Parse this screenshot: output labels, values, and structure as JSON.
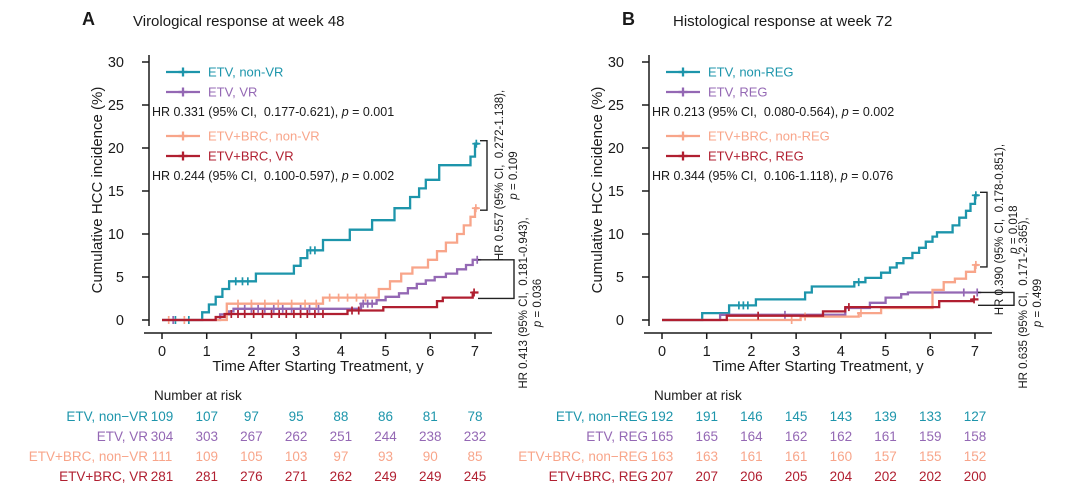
{
  "page": {
    "background": "#ffffff",
    "text_color": "#1a1a1a",
    "colors": {
      "teal": "#1d95ab",
      "purple": "#9468b4",
      "salmon": "#f8a58a",
      "crimson": "#b01f30"
    }
  },
  "chart_data": [
    {
      "type": "line",
      "subtype": "kaplan-meier-cumulative-incidence",
      "panel_letter": "A",
      "title": "Virological response at week 48",
      "xlabel": "Time After Starting Treatment, y",
      "ylabel": "Cumulative HCC incidence (%)",
      "xlim": [
        0,
        7.1
      ],
      "ylim": [
        0,
        31
      ],
      "x_ticks": [
        0,
        1,
        2,
        3,
        4,
        5,
        6,
        7
      ],
      "y_ticks": [
        0,
        5,
        10,
        15,
        20,
        25,
        30
      ],
      "grid": false,
      "legend_position": "top-left-inside",
      "series": [
        {
          "name": "ETV, non-VR",
          "color": "#1d95ab",
          "steps": [
            [
              0,
              0
            ],
            [
              0.9,
              0.9
            ],
            [
              1.05,
              1.8
            ],
            [
              1.2,
              2.7
            ],
            [
              1.35,
              3.6
            ],
            [
              1.5,
              4.5
            ],
            [
              2.1,
              5.4
            ],
            [
              2.95,
              6.3
            ],
            [
              3.1,
              7.2
            ],
            [
              3.25,
              8.1
            ],
            [
              3.6,
              9.3
            ],
            [
              4.2,
              10.5
            ],
            [
              4.7,
              11.6
            ],
            [
              5.2,
              13.0
            ],
            [
              5.55,
              14.3
            ],
            [
              5.75,
              15.3
            ],
            [
              5.9,
              16.3
            ],
            [
              6.2,
              18.0
            ],
            [
              6.9,
              19.0
            ],
            [
              7.0,
              20.5
            ]
          ],
          "censors": [
            [
              0.3,
              0
            ],
            [
              0.6,
              0
            ],
            [
              1.65,
              4.5
            ],
            [
              1.8,
              4.5
            ],
            [
              1.92,
              4.5
            ],
            [
              3.32,
              8.1
            ],
            [
              3.42,
              8.1
            ],
            [
              7.03,
              20.5
            ]
          ]
        },
        {
          "name": "ETV, VR",
          "color": "#9468b4",
          "steps": [
            [
              0,
              0
            ],
            [
              1.3,
              0.65
            ],
            [
              1.5,
              1.0
            ],
            [
              1.6,
              1.3
            ],
            [
              4.45,
              1.9
            ],
            [
              4.8,
              2.3
            ],
            [
              5.0,
              2.7
            ],
            [
              5.3,
              3.1
            ],
            [
              5.5,
              3.7
            ],
            [
              5.7,
              4.2
            ],
            [
              5.9,
              4.6
            ],
            [
              6.1,
              5.0
            ],
            [
              6.35,
              5.4
            ],
            [
              6.6,
              5.9
            ],
            [
              6.8,
              6.4
            ],
            [
              6.95,
              7.0
            ]
          ],
          "censors": [
            [
              0.25,
              0
            ],
            [
              1.7,
              1.3
            ],
            [
              1.85,
              1.3
            ],
            [
              2.0,
              1.3
            ],
            [
              2.15,
              1.3
            ],
            [
              2.3,
              1.3
            ],
            [
              2.5,
              1.3
            ],
            [
              2.7,
              1.3
            ],
            [
              2.9,
              1.3
            ],
            [
              3.1,
              1.3
            ],
            [
              3.3,
              1.3
            ],
            [
              3.5,
              1.3
            ],
            [
              4.5,
              1.9
            ],
            [
              4.6,
              1.9
            ],
            [
              4.7,
              1.9
            ],
            [
              7.05,
              7.0
            ]
          ]
        },
        {
          "name": "ETV+BRC, non-VR",
          "color": "#f8a58a",
          "steps": [
            [
              0,
              0
            ],
            [
              1.45,
              1.9
            ],
            [
              3.6,
              2.6
            ],
            [
              4.85,
              3.6
            ],
            [
              5.1,
              4.5
            ],
            [
              5.35,
              5.4
            ],
            [
              5.6,
              6.1
            ],
            [
              5.95,
              7.0
            ],
            [
              6.15,
              8.0
            ],
            [
              6.35,
              9.0
            ],
            [
              6.6,
              10.0
            ],
            [
              6.75,
              11.0
            ],
            [
              6.9,
              12.0
            ],
            [
              7.0,
              13.0
            ]
          ],
          "censors": [
            [
              0.15,
              0
            ],
            [
              0.5,
              0
            ],
            [
              1.7,
              1.9
            ],
            [
              2.0,
              1.9
            ],
            [
              2.3,
              1.9
            ],
            [
              2.6,
              1.9
            ],
            [
              2.9,
              1.9
            ],
            [
              3.2,
              1.9
            ],
            [
              3.45,
              1.9
            ],
            [
              3.75,
              2.6
            ],
            [
              3.95,
              2.6
            ],
            [
              4.15,
              2.6
            ],
            [
              4.35,
              2.6
            ],
            [
              4.55,
              2.6
            ],
            [
              7.02,
              13.0
            ]
          ]
        },
        {
          "name": "ETV+BRC, VR",
          "color": "#b01f30",
          "steps": [
            [
              0,
              0
            ],
            [
              1.2,
              0.35
            ],
            [
              1.4,
              0.7
            ],
            [
              4.15,
              1.1
            ],
            [
              4.95,
              1.5
            ],
            [
              6.15,
              2.2
            ],
            [
              6.28,
              2.6
            ],
            [
              6.95,
              3.2
            ]
          ],
          "censors": [
            [
              1.55,
              0.7
            ],
            [
              1.7,
              0.7
            ],
            [
              1.85,
              0.7
            ],
            [
              2.05,
              0.7
            ],
            [
              2.25,
              0.7
            ],
            [
              2.45,
              0.7
            ],
            [
              2.62,
              0.7
            ],
            [
              2.78,
              0.7
            ],
            [
              2.95,
              0.7
            ],
            [
              3.1,
              0.7
            ],
            [
              3.25,
              0.7
            ],
            [
              3.42,
              0.7
            ],
            [
              3.6,
              0.7
            ],
            [
              4.25,
              1.1
            ],
            [
              4.4,
              1.1
            ],
            [
              6.98,
              3.2
            ]
          ]
        }
      ],
      "hr_annotations": [
        {
          "text": "HR 0.331 (95% CI,  0.177-0.621), ",
          "p": "p = 0.001"
        },
        {
          "text": "HR 0.244 (95% CI,  0.100-0.597), ",
          "p": "p = 0.002"
        }
      ],
      "brackets": [
        {
          "text": "HR 0.557 (95% CI,  0.272-1.138),",
          "p": "p = 0.109",
          "from": 0,
          "to": 2,
          "position": "upper"
        },
        {
          "text": "HR 0.413 (95% CI,  0.181-0.943),",
          "p": "p = 0.036",
          "from": 1,
          "to": 3,
          "position": "lower"
        }
      ],
      "number_at_risk": {
        "title": "Number at risk",
        "rows": [
          {
            "label": "ETV, non−VR",
            "values": [
              109,
              107,
              97,
              95,
              88,
              86,
              81,
              78
            ]
          },
          {
            "label": "ETV, VR",
            "values": [
              304,
              303,
              267,
              262,
              251,
              244,
              238,
              232
            ]
          },
          {
            "label": "ETV+BRC, non−VR",
            "values": [
              111,
              109,
              105,
              103,
              97,
              93,
              90,
              85
            ]
          },
          {
            "label": "ETV+BRC, VR",
            "values": [
              281,
              281,
              276,
              271,
              262,
              249,
              249,
              245
            ]
          }
        ]
      }
    },
    {
      "type": "line",
      "subtype": "kaplan-meier-cumulative-incidence",
      "panel_letter": "B",
      "title": "Histological response at week 72",
      "xlabel": "Time After Starting Treatment, y",
      "ylabel": "Cumulative HCC incidence (%)",
      "xlim": [
        0,
        7.1
      ],
      "ylim": [
        0,
        31
      ],
      "x_ticks": [
        0,
        1,
        2,
        3,
        4,
        5,
        6,
        7
      ],
      "y_ticks": [
        0,
        5,
        10,
        15,
        20,
        25,
        30
      ],
      "grid": false,
      "legend_position": "top-left-inside",
      "series": [
        {
          "name": "ETV, non-REG",
          "color": "#1d95ab",
          "steps": [
            [
              0,
              0
            ],
            [
              0.9,
              0.8
            ],
            [
              1.5,
              1.7
            ],
            [
              2.1,
              2.4
            ],
            [
              3.2,
              3.2
            ],
            [
              3.35,
              3.9
            ],
            [
              4.3,
              4.4
            ],
            [
              4.55,
              4.9
            ],
            [
              4.9,
              5.5
            ],
            [
              5.1,
              6.1
            ],
            [
              5.25,
              6.6
            ],
            [
              5.4,
              7.2
            ],
            [
              5.6,
              7.8
            ],
            [
              5.75,
              8.4
            ],
            [
              5.9,
              9.1
            ],
            [
              6.05,
              9.7
            ],
            [
              6.15,
              10.2
            ],
            [
              6.5,
              11.0
            ],
            [
              6.65,
              11.9
            ],
            [
              6.8,
              12.7
            ],
            [
              6.9,
              13.5
            ],
            [
              7.0,
              14.5
            ]
          ],
          "censors": [
            [
              1.72,
              1.7
            ],
            [
              1.82,
              1.7
            ],
            [
              1.92,
              1.7
            ],
            [
              4.4,
              4.4
            ],
            [
              7.02,
              14.5
            ]
          ]
        },
        {
          "name": "ETV, REG",
          "color": "#9468b4",
          "steps": [
            [
              0,
              0
            ],
            [
              1.3,
              0.6
            ],
            [
              4.1,
              1.4
            ],
            [
              4.65,
              2.0
            ],
            [
              5.0,
              2.6
            ],
            [
              5.35,
              3.0
            ],
            [
              5.5,
              3.2
            ]
          ],
          "censors": [
            [
              2.75,
              0.6
            ],
            [
              6.75,
              3.2
            ],
            [
              7.05,
              3.2
            ]
          ]
        },
        {
          "name": "ETV+BRC, non-REG",
          "color": "#f8a58a",
          "steps": [
            [
              0,
              0
            ],
            [
              3.1,
              0.4
            ],
            [
              4.4,
              0.8
            ],
            [
              4.9,
              1.4
            ],
            [
              6.05,
              3.5
            ],
            [
              6.3,
              4.4
            ],
            [
              6.55,
              4.8
            ],
            [
              6.8,
              5.6
            ],
            [
              7.0,
              6.4
            ]
          ],
          "censors": [
            [
              2.9,
              0
            ],
            [
              3.2,
              0.4
            ],
            [
              4.45,
              0.8
            ],
            [
              7.02,
              6.4
            ]
          ]
        },
        {
          "name": "ETV+BRC, REG",
          "color": "#b01f30",
          "steps": [
            [
              0,
              0
            ],
            [
              1.45,
              0.5
            ],
            [
              3.6,
              1.0
            ],
            [
              4.1,
              1.5
            ],
            [
              6.2,
              2.2
            ],
            [
              6.95,
              2.4
            ]
          ],
          "censors": [
            [
              2.15,
              0.5
            ],
            [
              4.18,
              1.5
            ],
            [
              6.98,
              2.4
            ]
          ]
        }
      ],
      "hr_annotations": [
        {
          "text": "HR 0.213 (95% CI,  0.080-0.564), ",
          "p": "p = 0.002"
        },
        {
          "text": "HR 0.344 (95% CI,  0.106-1.118), ",
          "p": "p = 0.076"
        }
      ],
      "brackets": [
        {
          "text": "HR 0.390 (95% CI,  0.178-0.851),",
          "p": "p = 0.018",
          "from": 0,
          "to": 2,
          "position": "upper"
        },
        {
          "text": "HR 0.635 (95% CI,  0.171-2.365),",
          "p": "p = 0.499",
          "from": 1,
          "to": 3,
          "position": "lower"
        }
      ],
      "number_at_risk": {
        "title": "Number at risk",
        "rows": [
          {
            "label": "ETV, non−REG",
            "values": [
              192,
              191,
              146,
              145,
              143,
              139,
              133,
              127
            ]
          },
          {
            "label": "ETV, REG",
            "values": [
              165,
              165,
              164,
              162,
              162,
              161,
              159,
              158
            ]
          },
          {
            "label": "ETV+BRC, non−REG",
            "values": [
              163,
              163,
              161,
              161,
              160,
              157,
              155,
              152
            ]
          },
          {
            "label": "ETV+BRC, REG",
            "values": [
              207,
              207,
              206,
              205,
              204,
              202,
              202,
              200
            ]
          }
        ]
      }
    }
  ]
}
